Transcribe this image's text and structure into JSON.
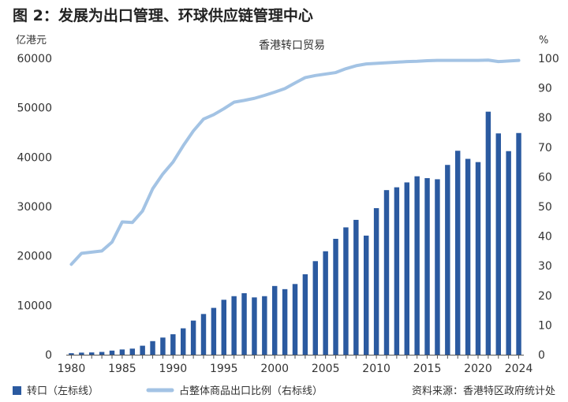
{
  "header": {
    "title": "图 2：发展为出口管理、环球供应链管理中心",
    "left_unit": "亿港元",
    "right_unit": "%",
    "subtitle": "香港转口贸易"
  },
  "legend": {
    "bar_label": "转口（左标线）",
    "line_label": "占整体商品出口比例（右标线）"
  },
  "source": "资料来源：香港特区政府统计处",
  "colors": {
    "bar": "#2b5aa0",
    "line": "#a3c3e4",
    "axis": "#555555"
  },
  "chart_data": {
    "type": "bar",
    "title": "香港转口贸易",
    "subtitle": "",
    "xlabel": "",
    "x": [
      1980,
      1981,
      1982,
      1983,
      1984,
      1985,
      1986,
      1987,
      1988,
      1989,
      1990,
      1991,
      1992,
      1993,
      1994,
      1995,
      1996,
      1997,
      1998,
      1999,
      2000,
      2001,
      2002,
      2003,
      2004,
      2005,
      2006,
      2007,
      2008,
      2009,
      2010,
      2011,
      2012,
      2013,
      2014,
      2015,
      2016,
      2017,
      2018,
      2019,
      2020,
      2021,
      2022,
      2023,
      2024
    ],
    "x_ticks": [
      "1980",
      "1985",
      "1990",
      "1995",
      "2000",
      "2005",
      "2010",
      "2015",
      "2020",
      "2024"
    ],
    "x_tick_values": [
      1980,
      1985,
      1990,
      1995,
      2000,
      2005,
      2010,
      2015,
      2020,
      2024
    ],
    "series": [
      {
        "name": "转口（左标线）",
        "type": "bar",
        "axis": "left",
        "values": [
          300,
          420,
          460,
          560,
          830,
          1060,
          1230,
          1820,
          2750,
          3470,
          4140,
          5340,
          6910,
          8240,
          9480,
          11120,
          11850,
          12450,
          11600,
          11850,
          13910,
          13270,
          14310,
          16290,
          18940,
          20940,
          23460,
          25780,
          27300,
          24110,
          29670,
          33320,
          33890,
          34880,
          36120,
          35750,
          35520,
          38420,
          41290,
          39650,
          38990,
          49200,
          44800,
          41210,
          44880
        ]
      },
      {
        "name": "占整体商品出口比例（右标线）",
        "type": "line",
        "axis": "right",
        "values": [
          30.5,
          34.2,
          34.6,
          35.0,
          38.0,
          44.8,
          44.6,
          48.5,
          56.0,
          61.0,
          65.0,
          70.5,
          75.5,
          79.5,
          81.0,
          83.0,
          85.2,
          85.8,
          86.5,
          87.5,
          88.6,
          89.8,
          91.7,
          93.5,
          94.2,
          94.7,
          95.2,
          96.5,
          97.5,
          98.1,
          98.3,
          98.5,
          98.7,
          98.9,
          99.0,
          99.2,
          99.3,
          99.3,
          99.3,
          99.3,
          99.3,
          99.4,
          98.9,
          99.1,
          99.3
        ]
      }
    ],
    "ylim_left": [
      0,
      60000
    ],
    "yticks_left": [
      0,
      10000,
      20000,
      30000,
      40000,
      50000,
      60000
    ],
    "ylim_right": [
      0,
      100
    ],
    "yticks_right": [
      0,
      10,
      20,
      30,
      40,
      50,
      60,
      70,
      80,
      90,
      100
    ],
    "grid": false,
    "legend_position": "bottom"
  }
}
